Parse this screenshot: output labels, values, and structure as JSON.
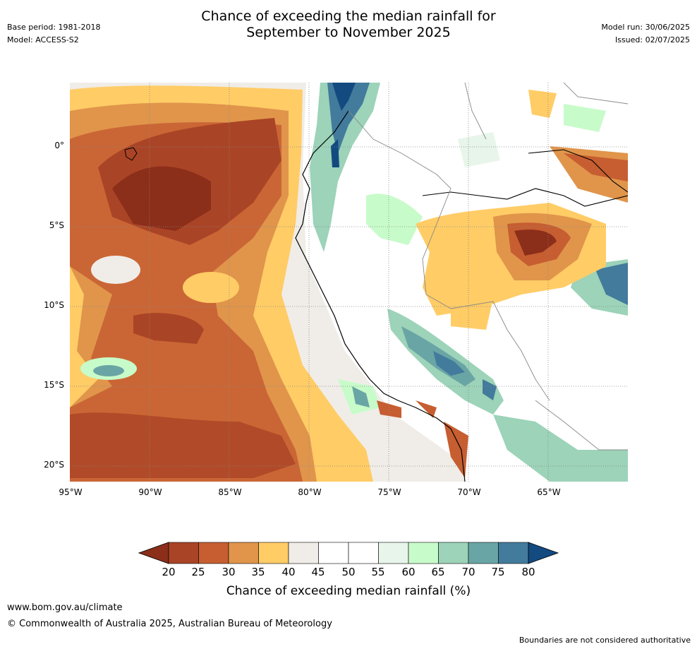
{
  "title_line1": "Chance of exceeding the median rainfall for",
  "title_line2": "September to November 2025",
  "meta_left": {
    "base_period": "Base period: 1981-2018",
    "model": "Model: ACCESS-S2"
  },
  "meta_right": {
    "model_run": "Model run: 30/06/2025",
    "issued": "Issued: 02/07/2025"
  },
  "axes": {
    "lat_labels": [
      "0°",
      "5°S",
      "10°S",
      "15°S",
      "20°S"
    ],
    "lon_labels": [
      "95°W",
      "90°W",
      "85°W",
      "80°W",
      "75°W",
      "70°W",
      "65°W"
    ]
  },
  "colorbar": {
    "label": "Chance of exceeding median rainfall (%)",
    "ticks": [
      "20",
      "25",
      "30",
      "35",
      "40",
      "45",
      "50",
      "55",
      "60",
      "65",
      "70",
      "75",
      "80"
    ],
    "under_color": "#8b2e1a",
    "colors": [
      "#aa4426",
      "#c65e31",
      "#e0954b",
      "#ffcc66",
      "#f0ede8",
      "#ffffff",
      "#ffffff",
      "#e8f5ea",
      "#c8fbca",
      "#9cd3b9",
      "#6aa5a5",
      "#437b9c"
    ],
    "over_color": "#134a80"
  },
  "footer": {
    "url": "www.bom.gov.au/climate",
    "copyright": "© Commonwealth of Australia 2025, Australian Bureau of Meteorology",
    "note": "Boundaries are not considered authoritative"
  }
}
